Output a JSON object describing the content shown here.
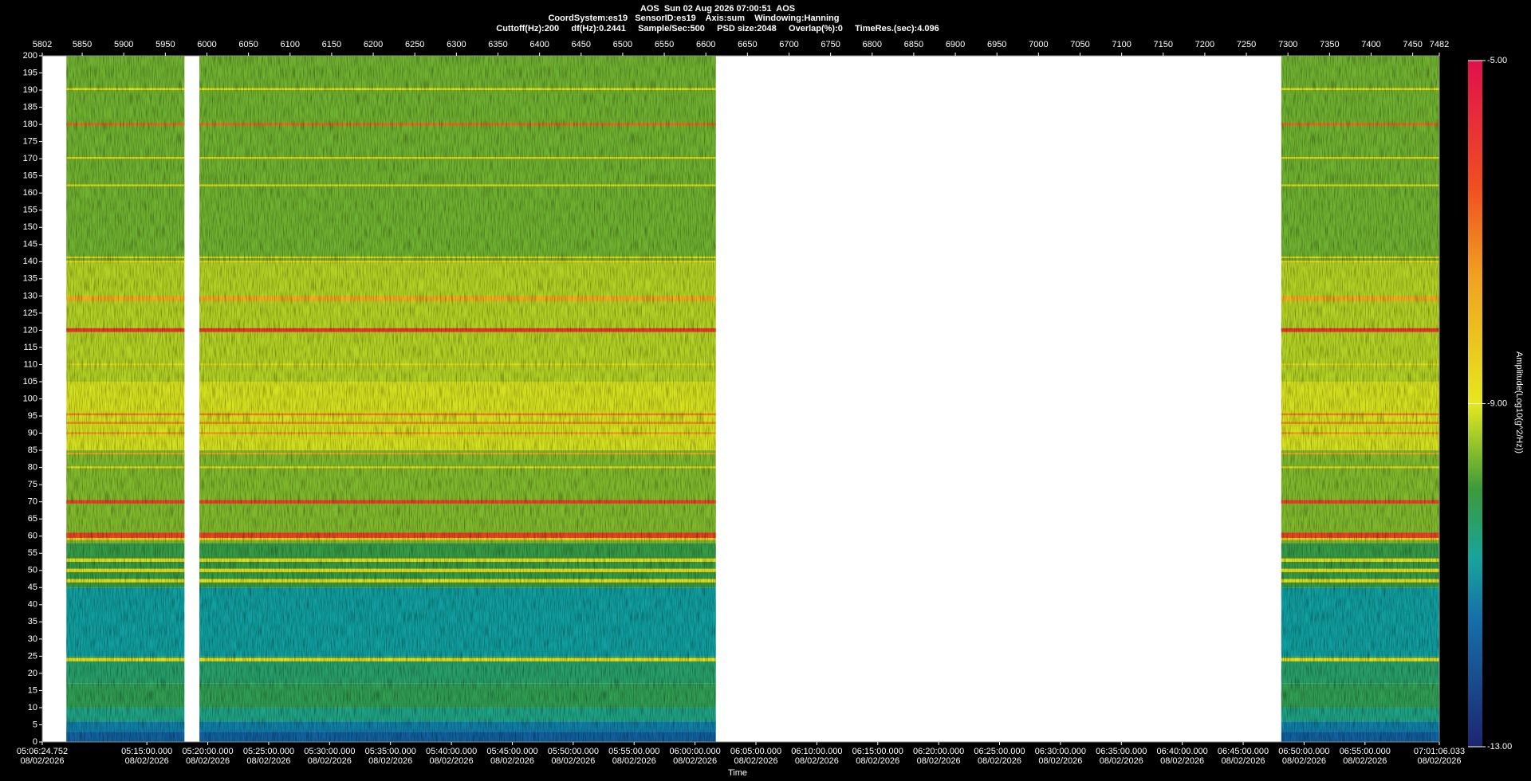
{
  "chart_data": {
    "type": "spectrogram",
    "title": "AOS  Sun 02 Aug 2026 07:00:51  AOS",
    "subtitle_lines": [
      "CoordSystem:es19   SensorID:es19    Axis:sum    Windowing:Hanning",
      "Cuttoff(Hz):200     df(Hz):0.2441     Sample/Sec:500     PSD size:2048     Overlap(%):0     TimeRes.(sec):4.096"
    ],
    "xlabel": "Time",
    "colorbar_label": "Amplitude(Log10(g^2/Hz))",
    "xlim": [
      5802,
      7482
    ],
    "xticks": [
      5802,
      5850,
      5900,
      5950,
      6000,
      6050,
      6100,
      6150,
      6200,
      6250,
      6300,
      6350,
      6400,
      6450,
      6500,
      6550,
      6600,
      6650,
      6700,
      6750,
      6800,
      6850,
      6900,
      6950,
      7000,
      7050,
      7100,
      7150,
      7200,
      7250,
      7300,
      7350,
      7400,
      7450,
      7482
    ],
    "timelim": [
      18384.752,
      25266.033
    ],
    "time_ticks": [
      {
        "value": 18384.752,
        "label": "05:06:24.752",
        "date": "08/02/2026"
      },
      {
        "value": 18900,
        "label": "05:15:00.000",
        "date": "08/02/2026"
      },
      {
        "value": 19200,
        "label": "05:20:00.000",
        "date": "08/02/2026"
      },
      {
        "value": 19500,
        "label": "05:25:00.000",
        "date": "08/02/2026"
      },
      {
        "value": 19800,
        "label": "05:30:00.000",
        "date": "08/02/2026"
      },
      {
        "value": 20100,
        "label": "05:35:00.000",
        "date": "08/02/2026"
      },
      {
        "value": 20400,
        "label": "05:40:00.000",
        "date": "08/02/2026"
      },
      {
        "value": 20700,
        "label": "05:45:00.000",
        "date": "08/02/2026"
      },
      {
        "value": 21000,
        "label": "05:50:00.000",
        "date": "08/02/2026"
      },
      {
        "value": 21300,
        "label": "05:55:00.000",
        "date": "08/02/2026"
      },
      {
        "value": 21600,
        "label": "06:00:00.000",
        "date": "08/02/2026"
      },
      {
        "value": 21900,
        "label": "06:05:00.000",
        "date": "08/02/2026"
      },
      {
        "value": 22200,
        "label": "06:10:00.000",
        "date": "08/02/2026"
      },
      {
        "value": 22500,
        "label": "06:15:00.000",
        "date": "08/02/2026"
      },
      {
        "value": 22800,
        "label": "06:20:00.000",
        "date": "08/02/2026"
      },
      {
        "value": 23100,
        "label": "06:25:00.000",
        "date": "08/02/2026"
      },
      {
        "value": 23400,
        "label": "06:30:00.000",
        "date": "08/02/2026"
      },
      {
        "value": 23700,
        "label": "06:35:00.000",
        "date": "08/02/2026"
      },
      {
        "value": 24000,
        "label": "06:40:00.000",
        "date": "08/02/2026"
      },
      {
        "value": 24300,
        "label": "06:45:00.000",
        "date": "08/02/2026"
      },
      {
        "value": 24600,
        "label": "06:50:00.000",
        "date": "08/02/2026"
      },
      {
        "value": 24900,
        "label": "06:55:00.000",
        "date": "08/02/2026"
      },
      {
        "value": 25266.033,
        "label": "07:01:06.033",
        "date": "08/02/2026"
      }
    ],
    "ylim": [
      0,
      200
    ],
    "yticks": [
      0,
      5,
      10,
      15,
      20,
      25,
      30,
      35,
      40,
      45,
      50,
      55,
      60,
      65,
      70,
      75,
      80,
      85,
      90,
      95,
      100,
      105,
      110,
      115,
      120,
      125,
      130,
      135,
      140,
      145,
      150,
      155,
      160,
      165,
      170,
      175,
      180,
      185,
      190,
      195,
      200
    ],
    "clim": [
      -13,
      -5
    ],
    "cticks": [
      {
        "value": -5,
        "label": "-5.00"
      },
      {
        "value": -9,
        "label": "-9.00"
      },
      {
        "value": -13,
        "label": "-13.00"
      }
    ],
    "colorscale": [
      [
        -13,
        "#1c2670"
      ],
      [
        -11.5,
        "#1670a8"
      ],
      [
        -10.8,
        "#18a49c"
      ],
      [
        -10,
        "#3c9a3a"
      ],
      [
        -9,
        "#e6e81e"
      ],
      [
        -7.5,
        "#f0a020"
      ],
      [
        -6.5,
        "#f05020"
      ],
      [
        -5,
        "#e0104c"
      ]
    ],
    "segments": [
      [
        5831,
        5973
      ],
      [
        5991,
        6612
      ],
      [
        7292,
        7482
      ]
    ],
    "bands": [
      {
        "from": 0,
        "to": 3,
        "amplitude": -11.8
      },
      {
        "from": 3,
        "to": 6,
        "amplitude": -11.3
      },
      {
        "from": 6,
        "to": 10,
        "amplitude": -10.6
      },
      {
        "from": 10,
        "to": 17,
        "amplitude": -10.2
      },
      {
        "from": 17,
        "to": 25,
        "amplitude": -10.4
      },
      {
        "from": 25,
        "to": 45,
        "amplitude": -10.9
      },
      {
        "from": 45,
        "to": 58,
        "amplitude": -10.1
      },
      {
        "from": 58,
        "to": 85,
        "amplitude": -9.6
      },
      {
        "from": 85,
        "to": 105,
        "amplitude": -9.1
      },
      {
        "from": 105,
        "to": 140,
        "amplitude": -9.3
      },
      {
        "from": 140,
        "to": 200,
        "amplitude": -9.7
      },
      {
        "from": 23.5,
        "to": 24.5,
        "amplitude": -8.8
      },
      {
        "from": 46.5,
        "to": 47.5,
        "amplitude": -8.8
      },
      {
        "from": 49.5,
        "to": 50.5,
        "amplitude": -8.8
      },
      {
        "from": 52.5,
        "to": 53.5,
        "amplitude": -8.8
      },
      {
        "from": 58.8,
        "to": 59.5,
        "amplitude": -8.5
      },
      {
        "from": 59.5,
        "to": 61,
        "amplitude": -6.2
      },
      {
        "from": 69.5,
        "to": 70.5,
        "amplitude": -6.2
      },
      {
        "from": 79.8,
        "to": 80.3,
        "amplitude": -8.7
      },
      {
        "from": 83.8,
        "to": 84.3,
        "amplitude": -7.8
      },
      {
        "from": 89.7,
        "to": 90.3,
        "amplitude": -7.5
      },
      {
        "from": 92.7,
        "to": 93.3,
        "amplitude": -7.3
      },
      {
        "from": 95.2,
        "to": 95.8,
        "amplitude": -7.2
      },
      {
        "from": 109.8,
        "to": 110.3,
        "amplitude": -8.7
      },
      {
        "from": 119.5,
        "to": 120.6,
        "amplitude": -6.0
      },
      {
        "from": 128.5,
        "to": 130,
        "amplitude": -7.8
      },
      {
        "from": 139.8,
        "to": 140.3,
        "amplitude": -8.6
      },
      {
        "from": 141,
        "to": 141.5,
        "amplitude": -8.6
      },
      {
        "from": 162,
        "to": 162.5,
        "amplitude": -8.8
      },
      {
        "from": 170,
        "to": 170.5,
        "amplitude": -8.7
      },
      {
        "from": 179.7,
        "to": 180.4,
        "amplitude": -6.8
      },
      {
        "from": 190,
        "to": 190.6,
        "amplitude": -8.8
      }
    ]
  }
}
